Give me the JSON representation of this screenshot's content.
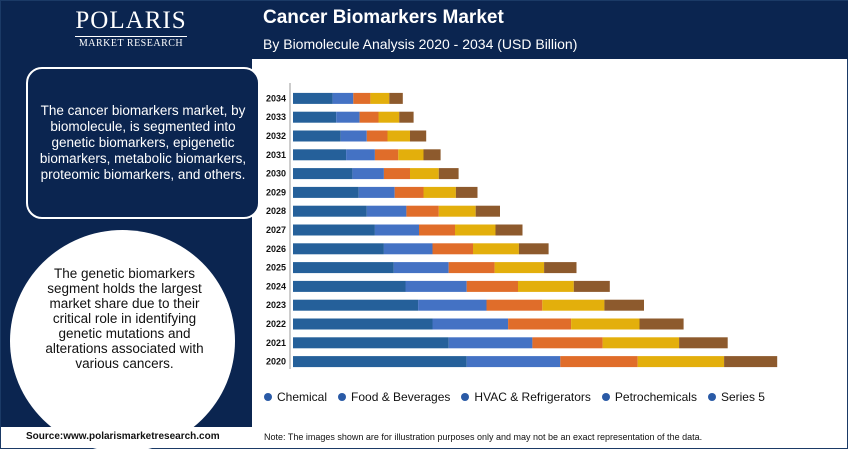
{
  "brand": {
    "name": "POLARIS",
    "sub": "MARKET RESEARCH"
  },
  "header": {
    "title": "Cancer Biomarkers Market",
    "subtitle": "By Biomolecule Analysis 2020 - 2034 (USD Billion)"
  },
  "panel": {
    "box_text": "The cancer biomarkers market, by biomolecule, is segmented into genetic biomarkers, epigenetic biomarkers, metabolic biomarkers, proteomic biomarkers, and others.",
    "circle_text": "The genetic biomarkers segment holds the largest market share due to their critical role in identifying genetic mutations and alterations associated with various cancers."
  },
  "footer": {
    "source": "Source:www.polarismarketresearch.com",
    "note": "Note: The images shown are for illustration purposes only and may not be an exact representation of the data."
  },
  "chart_data": {
    "type": "bar",
    "orientation": "horizontal",
    "stacked": true,
    "categories": [
      "2034",
      "2033",
      "2032",
      "2031",
      "2030",
      "2029",
      "2028",
      "2027",
      "2026",
      "2025",
      "2024",
      "2023",
      "2022",
      "2021",
      "2020"
    ],
    "series": [
      {
        "name": "Chemical",
        "color": "#25609a",
        "values": [
          44,
          48,
          53,
          59,
          66,
          73,
          82,
          91,
          101,
          112,
          125,
          139,
          155,
          173,
          193
        ]
      },
      {
        "name": "Food & Beverages",
        "color": "#4472c4",
        "values": [
          23,
          26,
          29,
          32,
          35,
          40,
          44,
          49,
          54,
          61,
          68,
          76,
          84,
          93,
          104
        ]
      },
      {
        "name": "HVAC & Refrigerators",
        "color": "#e06d2a",
        "values": [
          19,
          21,
          23,
          26,
          29,
          32,
          36,
          40,
          45,
          51,
          57,
          62,
          70,
          78,
          86
        ]
      },
      {
        "name": "Petrochemicals",
        "color": "#e3af0c",
        "values": [
          21,
          23,
          25,
          28,
          32,
          36,
          41,
          45,
          51,
          55,
          62,
          69,
          76,
          85,
          96
        ]
      },
      {
        "name": "Series 5",
        "color": "#8d5a2d",
        "values": [
          15,
          16,
          18,
          19,
          22,
          24,
          27,
          30,
          33,
          36,
          40,
          44,
          49,
          54,
          59
        ]
      }
    ],
    "xlim": [
      0,
      600
    ],
    "grid": false,
    "legend_position": "bottom"
  }
}
